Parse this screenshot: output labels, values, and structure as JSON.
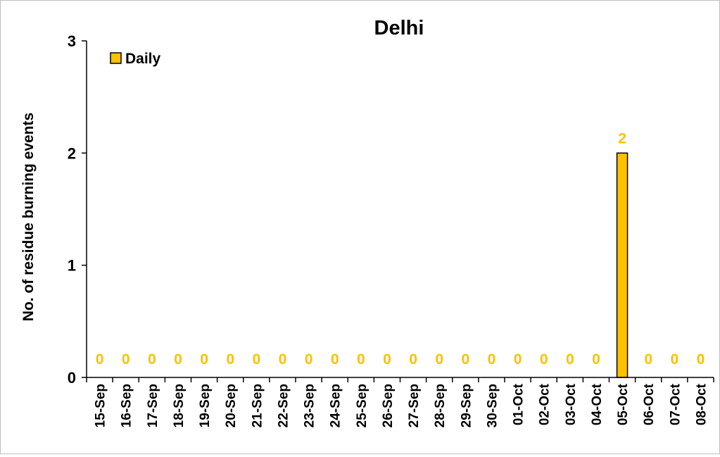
{
  "chart_data": {
    "type": "bar",
    "title": "Delhi",
    "xlabel": "",
    "ylabel": "No. of residue burning events",
    "categories": [
      "15-Sep",
      "16-Sep",
      "17-Sep",
      "18-Sep",
      "19-Sep",
      "20-Sep",
      "21-Sep",
      "22-Sep",
      "23-Sep",
      "24-Sep",
      "25-Sep",
      "26-Sep",
      "27-Sep",
      "28-Sep",
      "29-Sep",
      "30-Sep",
      "01-Oct",
      "02-Oct",
      "03-Oct",
      "04-Oct",
      "05-Oct",
      "06-Oct",
      "07-Oct",
      "08-Oct"
    ],
    "series": [
      {
        "name": "Daily",
        "values": [
          0,
          0,
          0,
          0,
          0,
          0,
          0,
          0,
          0,
          0,
          0,
          0,
          0,
          0,
          0,
          0,
          0,
          0,
          0,
          0,
          2,
          0,
          0,
          0
        ]
      }
    ],
    "data_labels": [
      "0",
      "0",
      "0",
      "0",
      "0",
      "0",
      "0",
      "0",
      "0",
      "0",
      "0",
      "0",
      "0",
      "0",
      "0",
      "0",
      "0",
      "0",
      "0",
      "0",
      "2",
      "0",
      "0",
      "0"
    ],
    "yticks": [
      "0",
      "1",
      "2",
      "3"
    ],
    "ylim": [
      0,
      3
    ],
    "grid": false,
    "legend_position": "top-left",
    "colors": {
      "bar_fill": "#FFC000",
      "bar_stroke": "#000000",
      "data_label": "#FFC000",
      "axis": "#000000",
      "text": "#000000"
    }
  }
}
